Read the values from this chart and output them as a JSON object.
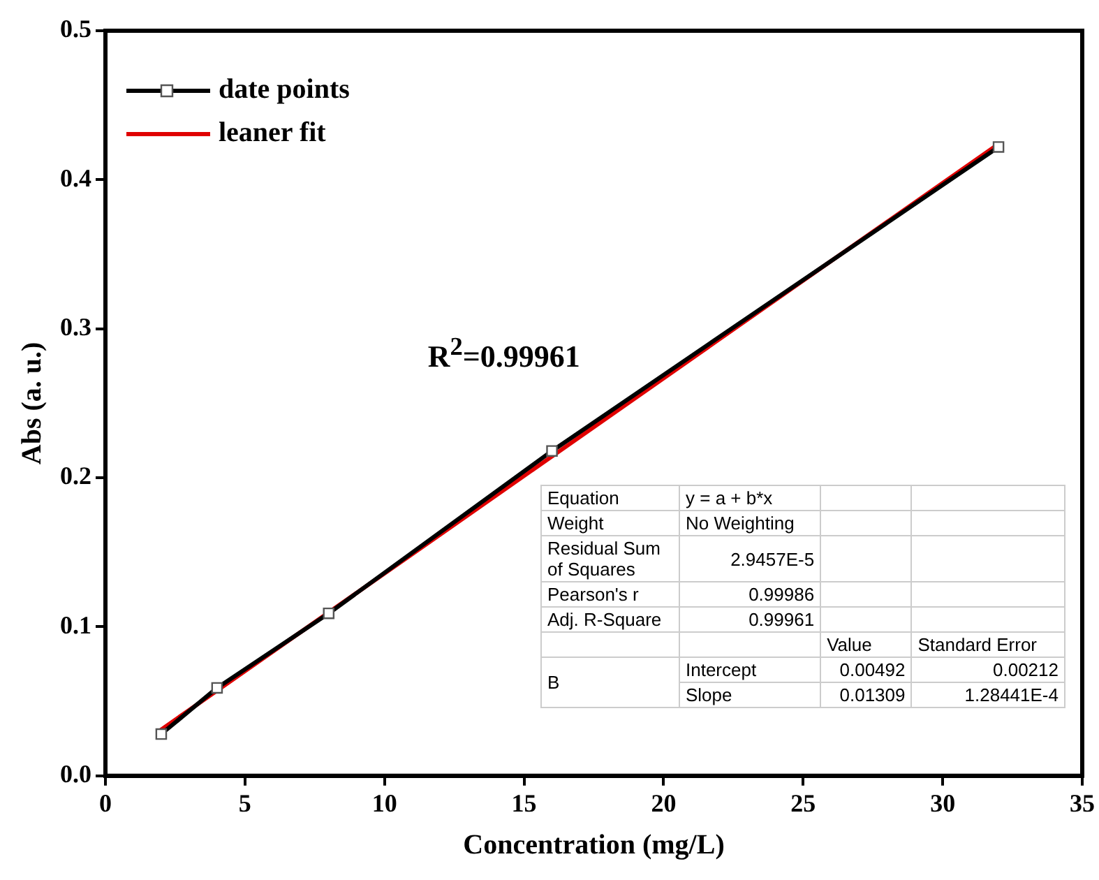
{
  "chart_data": {
    "type": "line",
    "xlabel": "Concentration (mg/L)",
    "ylabel": "Abs (a. u.)",
    "xlim": [
      0,
      35
    ],
    "xticks": [
      0,
      5,
      10,
      15,
      20,
      25,
      30,
      35
    ],
    "ylim": [
      0,
      0.5
    ],
    "yticks": [
      {
        "value": 0,
        "label": "0.0"
      },
      0.1,
      0.2,
      0.3,
      0.4,
      0.5
    ],
    "grid": false,
    "legend": "top left",
    "series": [
      {
        "name": "date points",
        "color": "#000000",
        "x": [
          2,
          4,
          8,
          16,
          32
        ],
        "values": [
          0.028,
          0.059,
          0.109,
          0.218,
          0.422
        ],
        "marker": "square",
        "line_style": "solid"
      },
      {
        "name": "leaner fit",
        "color": "#e00000",
        "x": [
          2,
          32
        ],
        "values": [
          0.031,
          0.424
        ],
        "marker": "none",
        "line_style": "solid"
      }
    ],
    "annotations": [
      "R$^{2}$=0.99961",
      "Equation",
      "y = a + b*x",
      "Weight",
      "No Weighting",
      "Residual Sum of Squares",
      "2.9457E-5",
      "Pearson's r",
      "0.99986",
      "Adj. R-Square",
      "0.99961",
      "Value",
      "Standard Error",
      "B",
      "Intercept",
      "0.00492",
      "0.00212",
      "Slope",
      "0.01309",
      "1.28441E-4"
    ]
  }
}
